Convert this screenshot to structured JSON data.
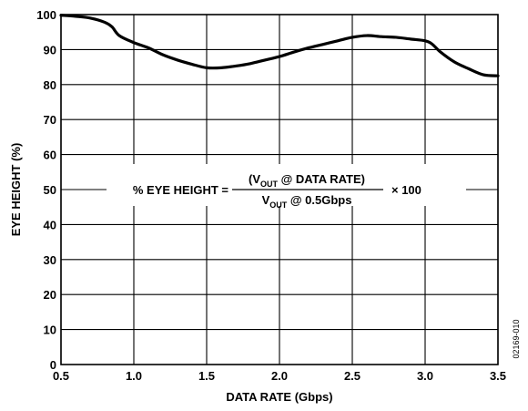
{
  "chart_data": {
    "type": "line",
    "title": "",
    "xlabel": "DATA RATE (Gbps)",
    "ylabel": "EYE HEIGHT (%)",
    "xlim": [
      0.5,
      3.5
    ],
    "ylim": [
      0,
      100
    ],
    "xticks": [
      "0.5",
      "1.0",
      "1.5",
      "2.0",
      "2.5",
      "3.0",
      "3.5"
    ],
    "yticks": [
      "0",
      "10",
      "20",
      "30",
      "40",
      "50",
      "60",
      "70",
      "80",
      "90",
      "100"
    ],
    "grid": true,
    "series": [
      {
        "x": [
          0.5,
          0.6,
          0.7,
          0.8,
          0.85,
          0.9,
          1.0,
          1.1,
          1.2,
          1.3,
          1.4,
          1.5,
          1.6,
          1.7,
          1.8,
          1.9,
          2.0,
          2.1,
          2.2,
          2.3,
          2.4,
          2.5,
          2.6,
          2.7,
          2.8,
          2.9,
          3.0,
          3.05,
          3.1,
          3.2,
          3.3,
          3.4,
          3.5
        ],
        "y": [
          99.8,
          99.5,
          99.0,
          97.8,
          96.5,
          94.0,
          92.0,
          90.5,
          88.5,
          87.0,
          85.8,
          84.8,
          84.8,
          85.3,
          86.0,
          87.0,
          88.0,
          89.3,
          90.5,
          91.5,
          92.5,
          93.5,
          94.0,
          93.7,
          93.5,
          93.0,
          92.5,
          91.5,
          89.5,
          86.5,
          84.5,
          82.8,
          82.5
        ]
      }
    ],
    "annotation": {
      "left": "% EYE HEIGHT =",
      "numerator_pre": "(V",
      "numerator_sub": "OUT",
      "numerator_post": " @ DATA RATE)",
      "denominator_pre": "V",
      "denominator_sub": "OUT",
      "denominator_post": " @ 0.5Gbps",
      "right": "× 100"
    },
    "figure_id": "02169-010",
    "line_color": "#000000"
  }
}
